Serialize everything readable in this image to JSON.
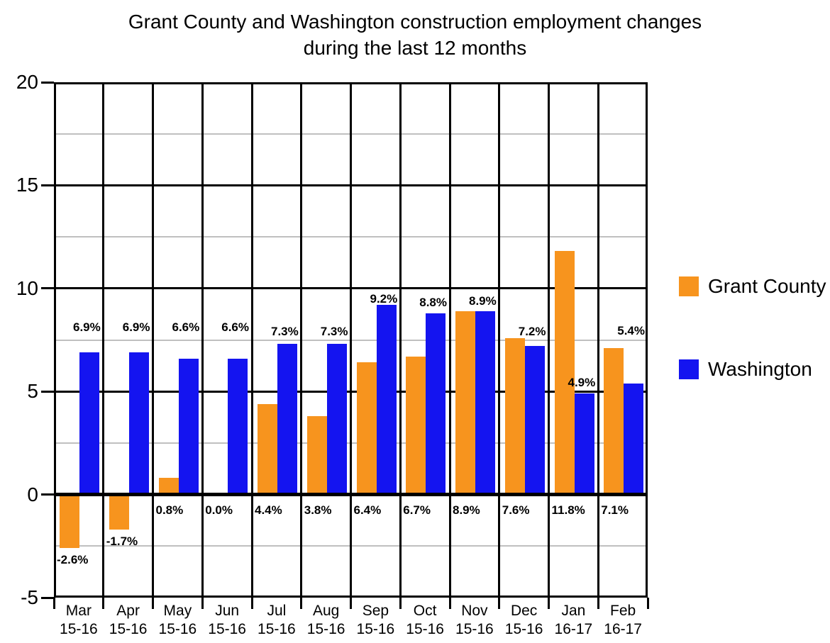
{
  "title_lines": [
    "Grant County and Washington construction employment changes",
    "during the last 12 months"
  ],
  "chart_data": {
    "type": "bar",
    "title": "Grant County and Washington construction employment changes during the last 12 months",
    "categories": [
      {
        "month": "Mar",
        "years": "15-16"
      },
      {
        "month": "Apr",
        "years": "15-16"
      },
      {
        "month": "May",
        "years": "15-16"
      },
      {
        "month": "Jun",
        "years": "15-16"
      },
      {
        "month": "Jul",
        "years": "15-16"
      },
      {
        "month": "Aug",
        "years": "15-16"
      },
      {
        "month": "Sep",
        "years": "15-16"
      },
      {
        "month": "Oct",
        "years": "15-16"
      },
      {
        "month": "Nov",
        "years": "15-16"
      },
      {
        "month": "Dec",
        "years": "15-16"
      },
      {
        "month": "Jan",
        "years": "16-17"
      },
      {
        "month": "Feb",
        "years": "16-17"
      }
    ],
    "series": [
      {
        "name": "Grant County",
        "color": "#F7941E",
        "values": [
          -2.6,
          -1.7,
          0.8,
          0.0,
          4.4,
          3.8,
          6.4,
          6.7,
          8.9,
          7.6,
          11.8,
          7.1
        ],
        "labels": [
          "-2.6%",
          "-1.7%",
          "0.8%",
          "0.0%",
          "4.4%",
          "3.8%",
          "6.4%",
          "6.7%",
          "8.9%",
          "7.6%",
          "11.8%",
          "7.1%"
        ]
      },
      {
        "name": "Washington",
        "color": "#1414F0",
        "values": [
          6.9,
          6.9,
          6.6,
          6.6,
          7.3,
          7.3,
          9.2,
          8.8,
          8.9,
          7.2,
          4.9,
          5.4
        ],
        "labels": [
          "6.9%",
          "6.9%",
          "6.6%",
          "6.6%",
          "7.3%",
          "7.3%",
          "9.2%",
          "8.8%",
          "8.9%",
          "7.2%",
          "4.9%",
          "5.4%"
        ]
      }
    ],
    "xlabel": "",
    "ylabel": "",
    "ylim": [
      -5,
      20
    ],
    "yticks": [
      20,
      15,
      10,
      5,
      0,
      -5
    ],
    "minor_gridlines": [
      17.5,
      12.5,
      7.5,
      2.5,
      -2.5
    ],
    "grid": "horizontal major black + minor gray, vertical column separators",
    "legend_position": "right",
    "colors": {
      "grant_county": "#F7941E",
      "washington": "#1414F0",
      "minor_grid": "#C0C0C0",
      "axis": "#000000"
    }
  }
}
